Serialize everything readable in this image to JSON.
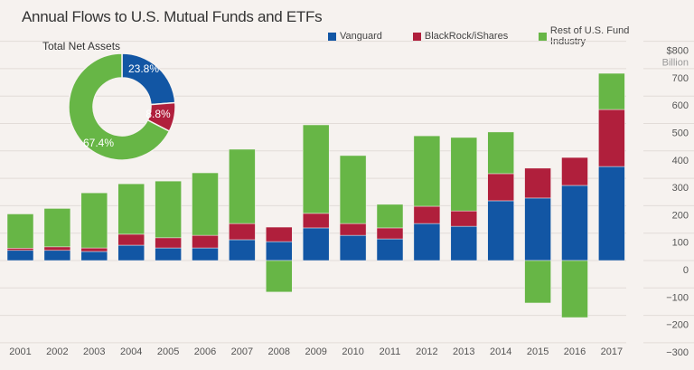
{
  "chart_data": [
    {
      "type": "bar",
      "stacked": true,
      "title": "Annual Flows to U.S. Mutual Funds and ETFs",
      "xlabel": "",
      "ylabel": "$ Billion",
      "unit_top": "$800",
      "unit_label": "Billion",
      "ylim": [
        -300,
        800
      ],
      "yticks": [
        800,
        700,
        600,
        500,
        400,
        300,
        200,
        100,
        0,
        -100,
        -200,
        -300
      ],
      "ytick_labels": [
        "$800",
        "700",
        "600",
        "500",
        "400",
        "300",
        "200",
        "100",
        "0",
        "−100",
        "−200",
        "−300"
      ],
      "grid": true,
      "legend_position": "top-right",
      "categories": [
        "2001",
        "2002",
        "2003",
        "2004",
        "2005",
        "2006",
        "2007",
        "2008",
        "2009",
        "2010",
        "2011",
        "2012",
        "2013",
        "2014",
        "2015",
        "2016",
        "2017"
      ],
      "series": [
        {
          "name": "Vanguard",
          "color": "#1256a4",
          "values": [
            37,
            37,
            33,
            56,
            46,
            46,
            76,
            69,
            119,
            92,
            79,
            135,
            125,
            218,
            228,
            274,
            343
          ]
        },
        {
          "name": "BlackRock/iShares",
          "color": "#b01f3c",
          "values": [
            8,
            13,
            13,
            40,
            37,
            46,
            59,
            53,
            53,
            43,
            40,
            63,
            56,
            99,
            109,
            102,
            208
          ]
        },
        {
          "name": "Rest of U.S. Fund Industry",
          "color": "#67b646",
          "values": [
            125,
            140,
            201,
            184,
            207,
            228,
            271,
            -115,
            323,
            248,
            86,
            257,
            268,
            152,
            -155,
            -208,
            132
          ]
        }
      ]
    },
    {
      "type": "pie",
      "donut": true,
      "title": "Total Net Assets",
      "categories": [
        "Vanguard",
        "BlackRock/iShares",
        "Rest of U.S. Fund Industry"
      ],
      "values": [
        23.8,
        8.8,
        67.4
      ],
      "labels": [
        "23.8%",
        "8.8%",
        "67.4%"
      ],
      "colors": [
        "#1256a4",
        "#b01f3c",
        "#67b646"
      ]
    }
  ]
}
